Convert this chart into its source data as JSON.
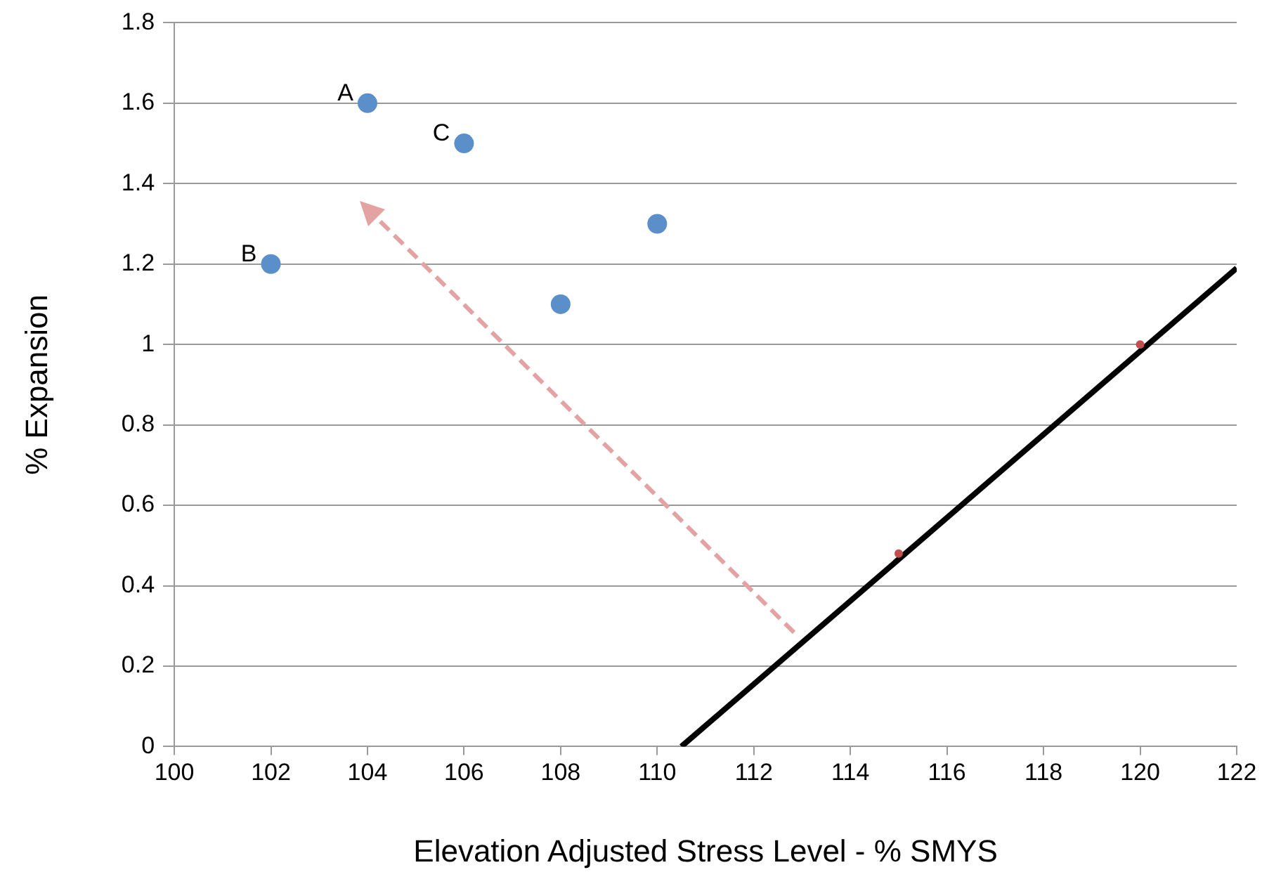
{
  "chart_data": {
    "type": "scatter",
    "xlabel": "Elevation Adjusted Stress Level - % SMYS",
    "ylabel": "% Expansion",
    "xlim": [
      100,
      122
    ],
    "xticks": [
      100,
      102,
      104,
      106,
      108,
      110,
      112,
      114,
      116,
      118,
      120,
      122
    ],
    "ylim": [
      0,
      1.8
    ],
    "yticks": [
      0,
      {
        "value": 0.2,
        "label": "0.2"
      },
      {
        "value": 0.4,
        "label": "0.4"
      },
      {
        "value": 0.6,
        "label": "0.6"
      },
      {
        "value": 0.8,
        "label": "0.8"
      },
      1,
      {
        "value": 1.2,
        "label": "1.2"
      },
      {
        "value": 1.4,
        "label": "1.4"
      },
      {
        "value": 1.6,
        "label": "1.6"
      },
      {
        "value": 1.8,
        "label": "1.8"
      }
    ],
    "grid": "y",
    "legend": false,
    "marker": "circle",
    "series": [
      {
        "color": "#5b8fc9",
        "x": [
          102,
          104,
          106,
          108,
          110
        ],
        "values": [
          1.2,
          1.6,
          1.5,
          1.1,
          1.3
        ]
      },
      {
        "color": "#c0504d",
        "x": [
          115,
          120
        ],
        "values": [
          0.48,
          1.0
        ]
      },
      {
        "type": "line",
        "marker": "none",
        "color": "#000000",
        "x": [
          110.5,
          122
        ],
        "values": [
          0,
          1.19
        ]
      }
    ],
    "annotations": [
      {
        "text": "A",
        "x": 104,
        "y": 1.6
      },
      {
        "text": "B",
        "x": 102,
        "y": 1.2
      },
      {
        "text": "C",
        "x": 106,
        "y": 1.5
      }
    ]
  }
}
